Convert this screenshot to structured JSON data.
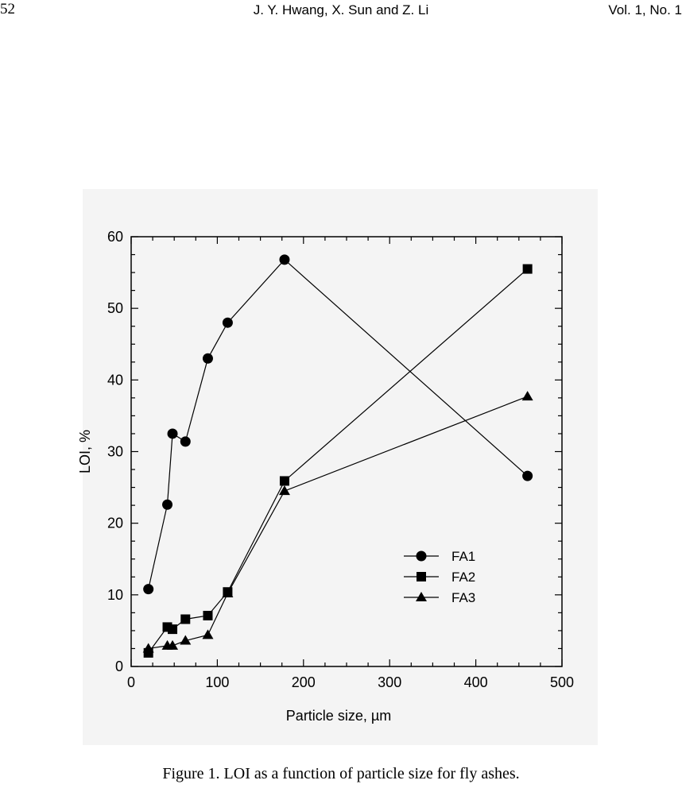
{
  "header": {
    "page_number": "52",
    "authors": "J. Y. Hwang, X. Sun and Z. Li",
    "volume": "Vol. 1, No. 1"
  },
  "figure": {
    "caption": "Figure 1. LOI as a function of particle size for fly ashes."
  },
  "chart_data": {
    "type": "line",
    "title": "",
    "xlabel": "Particle size, µm",
    "ylabel": "LOI, %",
    "xlim": [
      0,
      500
    ],
    "ylim": [
      0,
      60
    ],
    "x_ticks": [
      0,
      100,
      200,
      300,
      400,
      500
    ],
    "y_ticks": [
      0,
      10,
      20,
      30,
      40,
      50,
      60
    ],
    "grid": false,
    "legend_position": "lower-right",
    "series": [
      {
        "name": "FA1",
        "marker": "circle",
        "points": [
          [
            20,
            10.8
          ],
          [
            42,
            22.6
          ],
          [
            48,
            32.5
          ],
          [
            63,
            31.4
          ],
          [
            89,
            43.0
          ],
          [
            112,
            48.0
          ],
          [
            178,
            56.8
          ],
          [
            460,
            26.6
          ]
        ]
      },
      {
        "name": "FA2",
        "marker": "square",
        "points": [
          [
            20,
            1.9
          ],
          [
            42,
            5.5
          ],
          [
            48,
            5.2
          ],
          [
            63,
            6.6
          ],
          [
            89,
            7.1
          ],
          [
            112,
            10.4
          ],
          [
            178,
            25.9
          ],
          [
            460,
            55.5
          ]
        ]
      },
      {
        "name": "FA3",
        "marker": "triangle",
        "points": [
          [
            20,
            2.5
          ],
          [
            42,
            2.9
          ],
          [
            48,
            2.9
          ],
          [
            63,
            3.6
          ],
          [
            89,
            4.4
          ],
          [
            112,
            10.2
          ],
          [
            178,
            24.5
          ],
          [
            460,
            37.7
          ]
        ]
      }
    ]
  }
}
